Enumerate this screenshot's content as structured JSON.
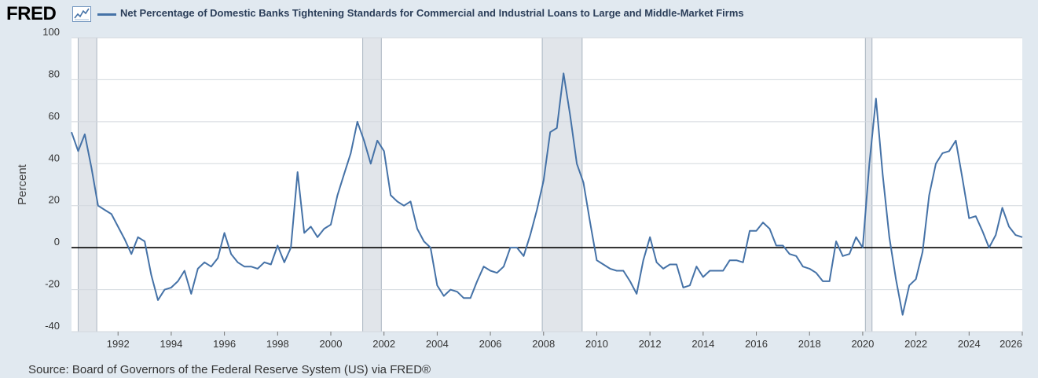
{
  "brand": {
    "logo_text": "FRED",
    "logo_icon": "trend-line-icon"
  },
  "chart_data": {
    "type": "line",
    "title": "Net Percentage of Domestic Banks Tightening Standards for Commercial and Industrial Loans to Large and Middle-Market Firms",
    "xlabel": "",
    "ylabel": "Percent",
    "xlim": [
      1990.25,
      2026.0
    ],
    "ylim": [
      -40,
      100
    ],
    "y_ticks": [
      100,
      80,
      60,
      40,
      20,
      0,
      -20,
      -40
    ],
    "x_ticks": [
      1992,
      1994,
      1996,
      1998,
      2000,
      2002,
      2004,
      2006,
      2008,
      2010,
      2012,
      2014,
      2016,
      2018,
      2020,
      2022,
      2024,
      2026
    ],
    "grid": true,
    "line_color": "#4572a7",
    "recessions": [
      [
        1990.5,
        1991.2
      ],
      [
        2001.2,
        2001.9
      ],
      [
        2007.95,
        2009.45
      ],
      [
        2020.1,
        2020.35
      ]
    ],
    "series": [
      {
        "name": "Net Percentage of Domestic Banks Tightening Standards for Commercial and Industrial Loans to Large and Middle-Market Firms",
        "x": [
          1990.25,
          1990.5,
          1990.75,
          1991.0,
          1991.25,
          1991.5,
          1991.75,
          1992.0,
          1992.25,
          1992.5,
          1992.75,
          1993.0,
          1993.25,
          1993.5,
          1993.75,
          1994.0,
          1994.25,
          1994.5,
          1994.75,
          1995.0,
          1995.25,
          1995.5,
          1995.75,
          1996.0,
          1996.25,
          1996.5,
          1996.75,
          1997.0,
          1997.25,
          1997.5,
          1997.75,
          1998.0,
          1998.25,
          1998.5,
          1998.75,
          1999.0,
          1999.25,
          1999.5,
          1999.75,
          2000.0,
          2000.25,
          2000.5,
          2000.75,
          2001.0,
          2001.25,
          2001.5,
          2001.75,
          2002.0,
          2002.25,
          2002.5,
          2002.75,
          2003.0,
          2003.25,
          2003.5,
          2003.75,
          2004.0,
          2004.25,
          2004.5,
          2004.75,
          2005.0,
          2005.25,
          2005.5,
          2005.75,
          2006.0,
          2006.25,
          2006.5,
          2006.75,
          2007.0,
          2007.25,
          2007.5,
          2007.75,
          2008.0,
          2008.25,
          2008.5,
          2008.75,
          2009.0,
          2009.25,
          2009.5,
          2009.75,
          2010.0,
          2010.25,
          2010.5,
          2010.75,
          2011.0,
          2011.25,
          2011.5,
          2011.75,
          2012.0,
          2012.25,
          2012.5,
          2012.75,
          2013.0,
          2013.25,
          2013.5,
          2013.75,
          2014.0,
          2014.25,
          2014.5,
          2014.75,
          2015.0,
          2015.25,
          2015.5,
          2015.75,
          2016.0,
          2016.25,
          2016.5,
          2016.75,
          2017.0,
          2017.25,
          2017.5,
          2017.75,
          2018.0,
          2018.25,
          2018.5,
          2018.75,
          2019.0,
          2019.25,
          2019.5,
          2019.75,
          2020.0,
          2020.25,
          2020.5,
          2020.75,
          2021.0,
          2021.25,
          2021.5,
          2021.75,
          2022.0,
          2022.25,
          2022.5,
          2022.75,
          2023.0,
          2023.25,
          2023.5,
          2023.75,
          2024.0,
          2024.25,
          2024.5,
          2024.75,
          2025.0,
          2025.25,
          2025.5,
          2025.75,
          2026.0
        ],
        "values": [
          55,
          46,
          54,
          38,
          20,
          18,
          16,
          10,
          4,
          -3,
          5,
          3,
          -13,
          -25,
          -20,
          -19,
          -16,
          -11,
          -22,
          -10,
          -7,
          -9,
          -5,
          7,
          -3,
          -7,
          -9,
          -9,
          -10,
          -7,
          -8,
          1,
          -7,
          0,
          36,
          7,
          10,
          5,
          9,
          11,
          25,
          35,
          45,
          60,
          51,
          40,
          51,
          46,
          25,
          22,
          20,
          22,
          9,
          3,
          0,
          -18,
          -23,
          -20,
          -21,
          -24,
          -24,
          -16,
          -9,
          -11,
          -12,
          -9,
          0,
          0,
          -4,
          6,
          18,
          32,
          55,
          57,
          83,
          63,
          40,
          31,
          12,
          -6,
          -8,
          -10,
          -11,
          -11,
          -16,
          -22,
          -6,
          5,
          -7,
          -10,
          -8,
          -8,
          -19,
          -18,
          -9,
          -14,
          -11,
          -11,
          -11,
          -6,
          -6,
          -7,
          8,
          8,
          12,
          9,
          1,
          1,
          -3,
          -4,
          -9,
          -10,
          -12,
          -16,
          -16,
          3,
          -4,
          -3,
          5,
          0,
          40,
          71,
          35,
          5,
          -15,
          -32,
          -18,
          -15,
          -2,
          25,
          40,
          45,
          46,
          51,
          33,
          14,
          15,
          8,
          0,
          6,
          19,
          10,
          6,
          5
        ]
      }
    ]
  },
  "source": "Source: Board of Governors of the Federal Reserve System (US) via FRED®"
}
